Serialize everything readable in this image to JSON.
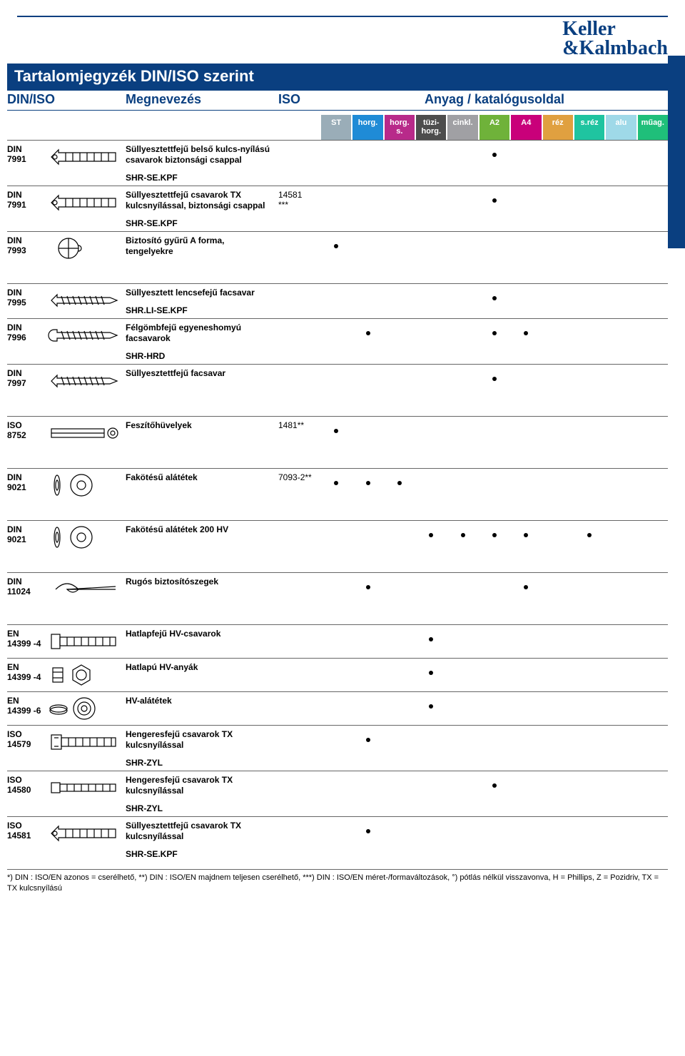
{
  "brand": {
    "line1": "Keller",
    "line2": "&Kalmbach",
    "color": "#0a3f80"
  },
  "title": "Tartalomjegyzék DIN/ISO szerint",
  "columns": {
    "diniso": "DIN/ISO",
    "name": "Megnevezés",
    "iso": "ISO",
    "material": "Anyag / katalógusoldal"
  },
  "material_columns": [
    {
      "label": "ST",
      "bg": "#9aadb8"
    },
    {
      "label": "horg.",
      "bg": "#1f8bd6"
    },
    {
      "label": "horg. s.",
      "bg": "#b82a8a"
    },
    {
      "label": "tüzi-horg.",
      "bg": "#4d4d4d"
    },
    {
      "label": "cinkl.",
      "bg": "#a0a0a4"
    },
    {
      "label": "A2",
      "bg": "#6fb23a"
    },
    {
      "label": "A4",
      "bg": "#c9007a"
    },
    {
      "label": "réz",
      "bg": "#e0a040"
    },
    {
      "label": "s.réz",
      "bg": "#1fc4a0"
    },
    {
      "label": "alu",
      "bg": "#9fd9e8"
    },
    {
      "label": "műag.",
      "bg": "#1fbf7a"
    }
  ],
  "column_bgs": [
    "#e0e5ea",
    "#d0e6f5",
    "#f3d3ea",
    "#dcdcdc",
    "#e6e6e8",
    "#e3f0d7",
    "#f6d2e8",
    "#f6ead6",
    "#d4f1e9",
    "#e7f5fa",
    "#d6f2e6"
  ],
  "sections": [
    {
      "rows": [
        {
          "din": "DIN 7991",
          "name": "Süllyesztettfejű belső kulcs-nyílású csavarok biztonsági csappal",
          "sub": "SHR-SE.KPF",
          "iso": "",
          "dots": [
            5
          ],
          "icon": "csk_hex_bolt"
        },
        {
          "din": "DIN 7991",
          "name": "Süllyesztettfejű csavarok TX kulcsnyílással, biztonsági csappal",
          "sub": "SHR-SE.KPF",
          "iso": "14581 ***",
          "dots": [
            5
          ],
          "icon": "csk_hex_bolt"
        },
        {
          "din": "DIN 7993",
          "name": "Biztosító gyűrű A forma, tengelyekre",
          "sub": "",
          "iso": "",
          "dots": [
            0
          ],
          "icon": "ring"
        }
      ]
    },
    {
      "rows": [
        {
          "din": "DIN 7995",
          "name": "Süllyesztett lencsefejű facsavar",
          "sub": "SHR.LI-SE.KPF",
          "iso": "",
          "dots": [
            5
          ],
          "icon": "woodscrew_csk"
        },
        {
          "din": "DIN 7996",
          "name": "Félgömbfejű egyeneshomyú facsavarok",
          "sub": "SHR-HRD",
          "iso": "",
          "dots": [
            1,
            5,
            6
          ],
          "icon": "woodscrew_round"
        },
        {
          "din": "DIN 7997",
          "name": "Süllyesztettfejű facsavar",
          "sub": "",
          "iso": "",
          "dots": [
            5
          ],
          "icon": "woodscrew_csk"
        }
      ]
    },
    {
      "rows": [
        {
          "din": "ISO 8752",
          "name": "Feszítőhüvelyek",
          "sub": "",
          "iso": "1481**",
          "dots": [
            0
          ],
          "icon": "spring_pin"
        }
      ]
    },
    {
      "rows": [
        {
          "din": "DIN 9021",
          "name": "Fakötésű alátétek",
          "sub": "",
          "iso": "7093-2**",
          "dots": [
            0,
            1,
            2
          ],
          "icon": "washer_pair"
        }
      ]
    },
    {
      "rows": [
        {
          "din": "DIN 9021",
          "name": "Fakötésű alátétek 200 HV",
          "sub": "",
          "iso": "",
          "dots": [
            3,
            4,
            5,
            6,
            8
          ],
          "icon": "washer_pair"
        }
      ]
    },
    {
      "rows": [
        {
          "din": "DIN 11024",
          "name": "Rugós biztosítószegek",
          "sub": "",
          "iso": "",
          "dots": [
            1,
            6
          ],
          "icon": "cotter_pin"
        }
      ]
    },
    {
      "rows": [
        {
          "din": "EN 14399 -4",
          "name": "Hatlapfejű HV-csavarok",
          "sub": "",
          "iso": "",
          "dots": [
            3
          ],
          "icon": "hex_bolt"
        },
        {
          "din": "EN 14399 -4",
          "name": "Hatlapú HV-anyák",
          "sub": "",
          "iso": "",
          "dots": [
            3
          ],
          "icon": "hex_nut"
        },
        {
          "din": "EN 14399 -6",
          "name": "HV-alátétek",
          "sub": "",
          "iso": "",
          "dots": [
            3
          ],
          "icon": "hv_washer"
        },
        {
          "din": "ISO 14579",
          "name": "Hengeresfejű csavarok TX kulcsnyílással",
          "sub": "SHR-ZYL",
          "iso": "",
          "dots": [
            1
          ],
          "icon": "cyl_bolt"
        },
        {
          "din": "ISO 14580",
          "name": "Hengeresfejű csavarok TX kulcsnyílással",
          "sub": "SHR-ZYL",
          "iso": "",
          "dots": [
            5
          ],
          "icon": "cyl_bolt_low"
        },
        {
          "din": "ISO 14581",
          "name": "Süllyesztettfejű csavarok TX kulcsnyílással",
          "sub": "SHR-SE.KPF",
          "iso": "",
          "dots": [
            1
          ],
          "icon": "csk_hex_bolt"
        }
      ]
    }
  ],
  "footnote": "*) DIN : ISO/EN azonos = cserélhető, **) DIN : ISO/EN majdnem teljesen cserélhető, ***) DIN : ISO/EN méret-/formaváltozások, °) pótlás nélkül visszavonva, H = Phillips, Z = Pozidriv, TX = TX kulcsnyílású"
}
